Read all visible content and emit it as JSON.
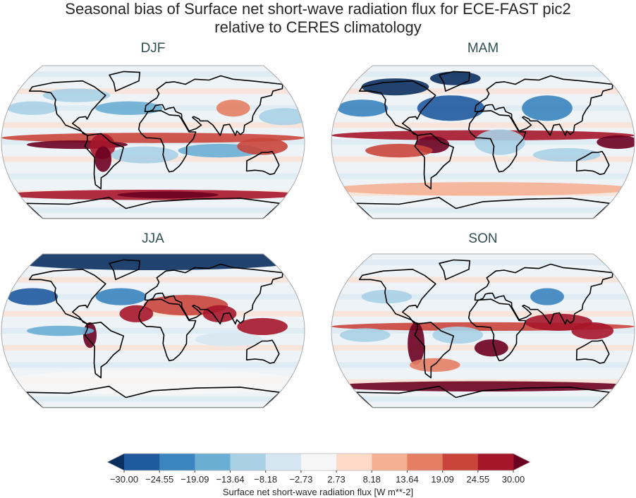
{
  "figure": {
    "title_line1": "Seasonal bias of Surface net short-wave radiation flux for ECE-FAST pic2",
    "title_line2": "relative to CERES climatology"
  },
  "panels": [
    {
      "label": "DJF"
    },
    {
      "label": "MAM"
    },
    {
      "label": "JJA"
    },
    {
      "label": "SON"
    }
  ],
  "colorbar": {
    "label": "Surface net short-wave radiation flux [W m**-2]",
    "ticks": [
      "−30.00",
      "−24.55",
      "−19.09",
      "−13.64",
      "−8.18",
      "−2.73",
      "2.73",
      "8.18",
      "13.64",
      "19.09",
      "24.55",
      "30.00"
    ],
    "range": [
      -30,
      30
    ],
    "extend": "both",
    "colors": [
      "#1f5a9e",
      "#3a84bf",
      "#6aaed3",
      "#a9d0e5",
      "#d7e7f1",
      "#f6f6f6",
      "#fddbc8",
      "#f5b093",
      "#e47f64",
      "#c9453b",
      "#a6162b"
    ],
    "under_color": "#0b3060",
    "over_color": "#6b0121"
  },
  "map_projection": "Robinson",
  "coastlines": "black"
}
